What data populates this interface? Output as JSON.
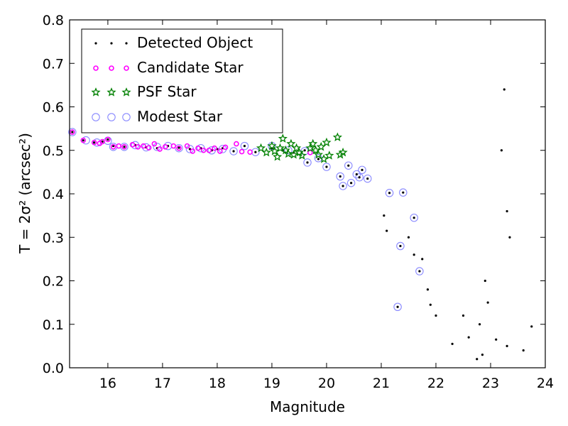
{
  "chart_data": {
    "type": "scatter",
    "xlabel": "Magnitude",
    "ylabel": "T = 2σ² (arcsec²)",
    "xlim": [
      15.3,
      24
    ],
    "ylim": [
      0.0,
      0.8
    ],
    "xticks": [
      "16",
      "17",
      "18",
      "19",
      "20",
      "21",
      "22",
      "23",
      "24"
    ],
    "yticks": [
      "0.0",
      "0.1",
      "0.2",
      "0.3",
      "0.4",
      "0.5",
      "0.6",
      "0.7",
      "0.8"
    ],
    "grid": false,
    "legend_position": "top-left",
    "colors": {
      "detected": "#000000",
      "candidate": "#ff00ff",
      "psf": "#008000",
      "modest": "#8888ff"
    },
    "series": [
      {
        "name": "Detected Object",
        "marker": "dot",
        "points": [
          [
            15.35,
            0.542
          ],
          [
            15.55,
            0.523
          ],
          [
            15.75,
            0.518
          ],
          [
            15.9,
            0.52
          ],
          [
            16.0,
            0.525
          ],
          [
            16.1,
            0.51
          ],
          [
            16.3,
            0.508
          ],
          [
            16.5,
            0.512
          ],
          [
            16.7,
            0.507
          ],
          [
            16.9,
            0.505
          ],
          [
            17.1,
            0.51
          ],
          [
            17.3,
            0.506
          ],
          [
            17.5,
            0.503
          ],
          [
            17.7,
            0.505
          ],
          [
            17.9,
            0.5
          ],
          [
            18.0,
            0.503
          ],
          [
            18.1,
            0.505
          ],
          [
            18.3,
            0.498
          ],
          [
            18.5,
            0.51
          ],
          [
            18.7,
            0.496
          ],
          [
            19.0,
            0.505
          ],
          [
            19.2,
            0.5
          ],
          [
            19.4,
            0.495
          ],
          [
            19.6,
            0.5
          ],
          [
            19.65,
            0.472
          ],
          [
            19.85,
            0.48
          ],
          [
            20.0,
            0.462
          ],
          [
            20.25,
            0.44
          ],
          [
            20.3,
            0.418
          ],
          [
            20.4,
            0.465
          ],
          [
            20.45,
            0.425
          ],
          [
            20.55,
            0.445
          ],
          [
            20.6,
            0.438
          ],
          [
            20.65,
            0.455
          ],
          [
            20.75,
            0.435
          ],
          [
            21.15,
            0.402
          ],
          [
            21.4,
            0.403
          ],
          [
            21.6,
            0.345
          ],
          [
            21.35,
            0.28
          ],
          [
            21.7,
            0.222
          ],
          [
            21.3,
            0.14
          ],
          [
            21.05,
            0.35
          ],
          [
            21.1,
            0.315
          ],
          [
            21.5,
            0.3
          ],
          [
            21.6,
            0.26
          ],
          [
            21.75,
            0.25
          ],
          [
            21.85,
            0.18
          ],
          [
            21.9,
            0.145
          ],
          [
            22.0,
            0.12
          ],
          [
            22.3,
            0.055
          ],
          [
            22.6,
            0.07
          ],
          [
            22.75,
            0.02
          ],
          [
            22.85,
            0.03
          ],
          [
            23.1,
            0.065
          ],
          [
            23.3,
            0.05
          ],
          [
            23.6,
            0.04
          ],
          [
            23.75,
            0.095
          ],
          [
            23.3,
            0.36
          ],
          [
            23.2,
            0.5
          ],
          [
            23.25,
            0.64
          ],
          [
            23.35,
            0.3
          ],
          [
            22.9,
            0.2
          ],
          [
            22.95,
            0.15
          ],
          [
            22.8,
            0.1
          ],
          [
            22.5,
            0.12
          ]
        ]
      },
      {
        "name": "Candidate Star",
        "marker": "circle-small",
        "points": [
          [
            15.35,
            0.542
          ],
          [
            15.55,
            0.523
          ],
          [
            15.75,
            0.518
          ],
          [
            15.85,
            0.516
          ],
          [
            15.9,
            0.52
          ],
          [
            16.0,
            0.525
          ],
          [
            16.1,
            0.508
          ],
          [
            16.2,
            0.51
          ],
          [
            16.3,
            0.508
          ],
          [
            16.45,
            0.513
          ],
          [
            16.55,
            0.508
          ],
          [
            16.65,
            0.51
          ],
          [
            16.75,
            0.506
          ],
          [
            16.85,
            0.515
          ],
          [
            16.95,
            0.503
          ],
          [
            17.05,
            0.508
          ],
          [
            17.2,
            0.51
          ],
          [
            17.3,
            0.505
          ],
          [
            17.45,
            0.51
          ],
          [
            17.55,
            0.498
          ],
          [
            17.65,
            0.505
          ],
          [
            17.75,
            0.5
          ],
          [
            17.85,
            0.5
          ],
          [
            17.95,
            0.505
          ],
          [
            18.05,
            0.498
          ],
          [
            18.15,
            0.507
          ],
          [
            18.35,
            0.515
          ],
          [
            18.45,
            0.497
          ],
          [
            18.6,
            0.496
          ],
          [
            19.7,
            0.495
          ]
        ]
      },
      {
        "name": "PSF Star",
        "marker": "star",
        "points": [
          [
            18.8,
            0.505
          ],
          [
            18.9,
            0.495
          ],
          [
            19.0,
            0.51
          ],
          [
            19.05,
            0.498
          ],
          [
            19.1,
            0.485
          ],
          [
            19.15,
            0.505
          ],
          [
            19.2,
            0.527
          ],
          [
            19.25,
            0.5
          ],
          [
            19.3,
            0.492
          ],
          [
            19.35,
            0.515
          ],
          [
            19.4,
            0.49
          ],
          [
            19.45,
            0.505
          ],
          [
            19.5,
            0.495
          ],
          [
            19.55,
            0.488
          ],
          [
            19.7,
            0.505
          ],
          [
            19.75,
            0.515
          ],
          [
            19.8,
            0.5
          ],
          [
            19.85,
            0.49
          ],
          [
            19.9,
            0.508
          ],
          [
            19.95,
            0.48
          ],
          [
            20.0,
            0.518
          ],
          [
            20.05,
            0.488
          ],
          [
            20.2,
            0.53
          ],
          [
            20.25,
            0.49
          ],
          [
            20.3,
            0.495
          ]
        ]
      },
      {
        "name": "Modest Star",
        "marker": "circle-open",
        "points": [
          [
            15.35,
            0.542
          ],
          [
            15.6,
            0.523
          ],
          [
            15.8,
            0.518
          ],
          [
            16.0,
            0.522
          ],
          [
            16.1,
            0.508
          ],
          [
            16.3,
            0.508
          ],
          [
            16.5,
            0.512
          ],
          [
            16.7,
            0.507
          ],
          [
            16.9,
            0.508
          ],
          [
            17.1,
            0.51
          ],
          [
            17.3,
            0.505
          ],
          [
            17.5,
            0.503
          ],
          [
            17.7,
            0.505
          ],
          [
            17.9,
            0.5
          ],
          [
            18.1,
            0.503
          ],
          [
            18.3,
            0.498
          ],
          [
            18.5,
            0.51
          ],
          [
            18.7,
            0.496
          ],
          [
            19.0,
            0.51
          ],
          [
            19.3,
            0.5
          ],
          [
            19.6,
            0.498
          ],
          [
            19.65,
            0.472
          ],
          [
            19.85,
            0.482
          ],
          [
            20.0,
            0.462
          ],
          [
            20.25,
            0.44
          ],
          [
            20.3,
            0.418
          ],
          [
            20.4,
            0.465
          ],
          [
            20.45,
            0.425
          ],
          [
            20.55,
            0.445
          ],
          [
            20.6,
            0.438
          ],
          [
            20.65,
            0.455
          ],
          [
            20.75,
            0.435
          ],
          [
            21.15,
            0.402
          ],
          [
            21.4,
            0.403
          ],
          [
            21.6,
            0.345
          ],
          [
            21.35,
            0.28
          ],
          [
            21.7,
            0.222
          ],
          [
            21.3,
            0.14
          ]
        ]
      }
    ]
  }
}
